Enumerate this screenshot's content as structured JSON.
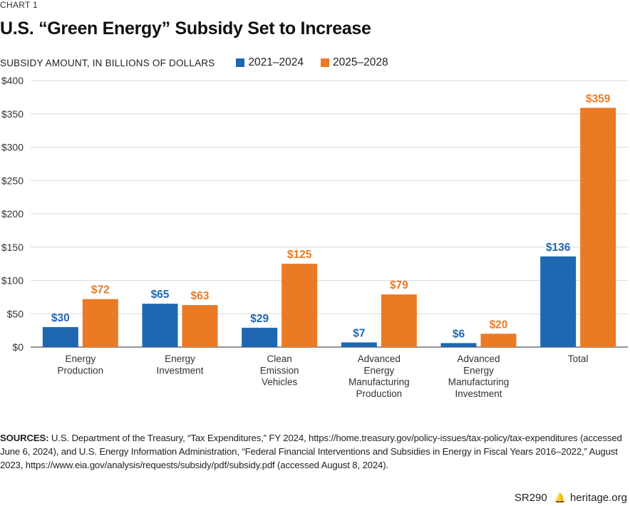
{
  "header": {
    "chart_number": "CHART 1",
    "title": "U.S. “Green Energy” Subsidy Set to Increase"
  },
  "chart_data": {
    "type": "bar",
    "title": "U.S. “Green Energy” Subsidy Set to Increase",
    "ylabel": "SUBSIDY AMOUNT, IN BILLIONS OF DOLLARS",
    "xlabel": "",
    "ylim": [
      0,
      400
    ],
    "yticks": [
      0,
      50,
      100,
      150,
      200,
      250,
      300,
      350,
      400
    ],
    "ytick_labels": [
      "$0",
      "$50",
      "$100",
      "$150",
      "$200",
      "$250",
      "$300",
      "$350",
      "$400"
    ],
    "grid": true,
    "legend_position": "top",
    "categories": [
      [
        "Energy",
        "Production"
      ],
      [
        "Energy",
        "Investment"
      ],
      [
        "Clean",
        "Emission",
        "Vehicles"
      ],
      [
        "Advanced",
        "Energy",
        "Manufacturing",
        "Production"
      ],
      [
        "Advanced",
        "Energy",
        "Manufacturing",
        "Investment"
      ],
      [
        "Total"
      ]
    ],
    "series": [
      {
        "name": "2021–2024",
        "color": "#1f67b1",
        "values": [
          30,
          65,
          29,
          7,
          6,
          136
        ],
        "labels": [
          "$30",
          "$65",
          "$29",
          "$7",
          "$6",
          "$136"
        ]
      },
      {
        "name": "2025–2028",
        "color": "#ea7a24",
        "values": [
          72,
          63,
          125,
          79,
          20,
          359
        ],
        "labels": [
          "$72",
          "$63",
          "$125",
          "$79",
          "$20",
          "$359"
        ]
      }
    ]
  },
  "sources": {
    "label": "SOURCES:",
    "text": " U.S. Department of the Treasury, “Tax Expenditures,” FY 2024, https://home.treasury.gov/policy-issues/tax-policy/tax-expenditures (accessed June 6, 2024), and U.S. Energy Information Administration, “Federal Financial Interventions and Subsidies in Energy in Fiscal Years 2016–2022,” August 2023, https://www.eia.gov/analysis/requests/subsidy/pdf/subsidy.pdf (accessed August 8, 2024)."
  },
  "footer": {
    "report_id": "SR290",
    "icon": "liberty-bell-icon",
    "site": "heritage.org"
  }
}
